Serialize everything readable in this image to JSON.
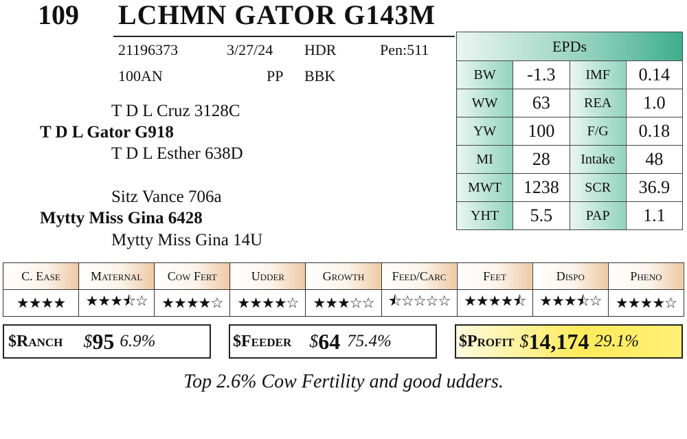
{
  "header": {
    "lot_number": "109",
    "animal_name": "LCHMN GATOR G143M"
  },
  "info": {
    "registration": "21196373",
    "birth_date": "3/27/24",
    "hdr": "HDR",
    "pen": "Pen:511",
    "code": "100AN",
    "pp": "PP",
    "color": "BBK"
  },
  "pedigree": {
    "sire_sire": "T D L Cruz 3128C",
    "sire": "T D L Gator G918",
    "sire_dam": "T D L Esther 638D",
    "dam_sire": "Sitz Vance 706a",
    "dam": "Mytty Miss Gina 6428",
    "dam_dam": "Mytty Miss Gina 14U"
  },
  "epds": {
    "title": "EPDs",
    "rows": [
      {
        "l1": "BW",
        "v1": "-1.3",
        "l2": "IMF",
        "v2": "0.14"
      },
      {
        "l1": "WW",
        "v1": "63",
        "l2": "REA",
        "v2": "1.0"
      },
      {
        "l1": "YW",
        "v1": "100",
        "l2": "F/G",
        "v2": "0.18"
      },
      {
        "l1": "MI",
        "v1": "28",
        "l2": "Intake",
        "v2": "48"
      },
      {
        "l1": "MWT",
        "v1": "1238",
        "l2": "SCR",
        "v2": "36.9"
      },
      {
        "l1": "YHT",
        "v1": "5.5",
        "l2": "PAP",
        "v2": "1.1"
      }
    ]
  },
  "traits": [
    {
      "label": "C. Ease",
      "stars": "★★★★"
    },
    {
      "label": "Maternal",
      "stars": "★★★⯪☆"
    },
    {
      "label": "Cow Fert",
      "stars": "★★★★☆"
    },
    {
      "label": "Udder",
      "stars": "★★★★☆"
    },
    {
      "label": "Growth",
      "stars": "★★★☆☆"
    },
    {
      "label": "Feed/Carc",
      "stars": "⯪☆☆☆☆"
    },
    {
      "label": "Feet",
      "stars": "★★★★⯪"
    },
    {
      "label": "Dispo",
      "stars": "★★★⯪☆"
    },
    {
      "label": "Pheno",
      "stars": "★★★★☆"
    }
  ],
  "indexes": {
    "ranch": {
      "label": "$Ranch",
      "dollar": "$",
      "value": "95",
      "pct": "6.9%"
    },
    "feeder": {
      "label": "$Feeder",
      "dollar": "$",
      "value": "64",
      "pct": "75.4%"
    },
    "profit": {
      "label": "$Profit",
      "dollar": "$",
      "value": "14,174",
      "pct": "29.1%"
    }
  },
  "comment": "Top 2.6% Cow Fertility and good udders."
}
